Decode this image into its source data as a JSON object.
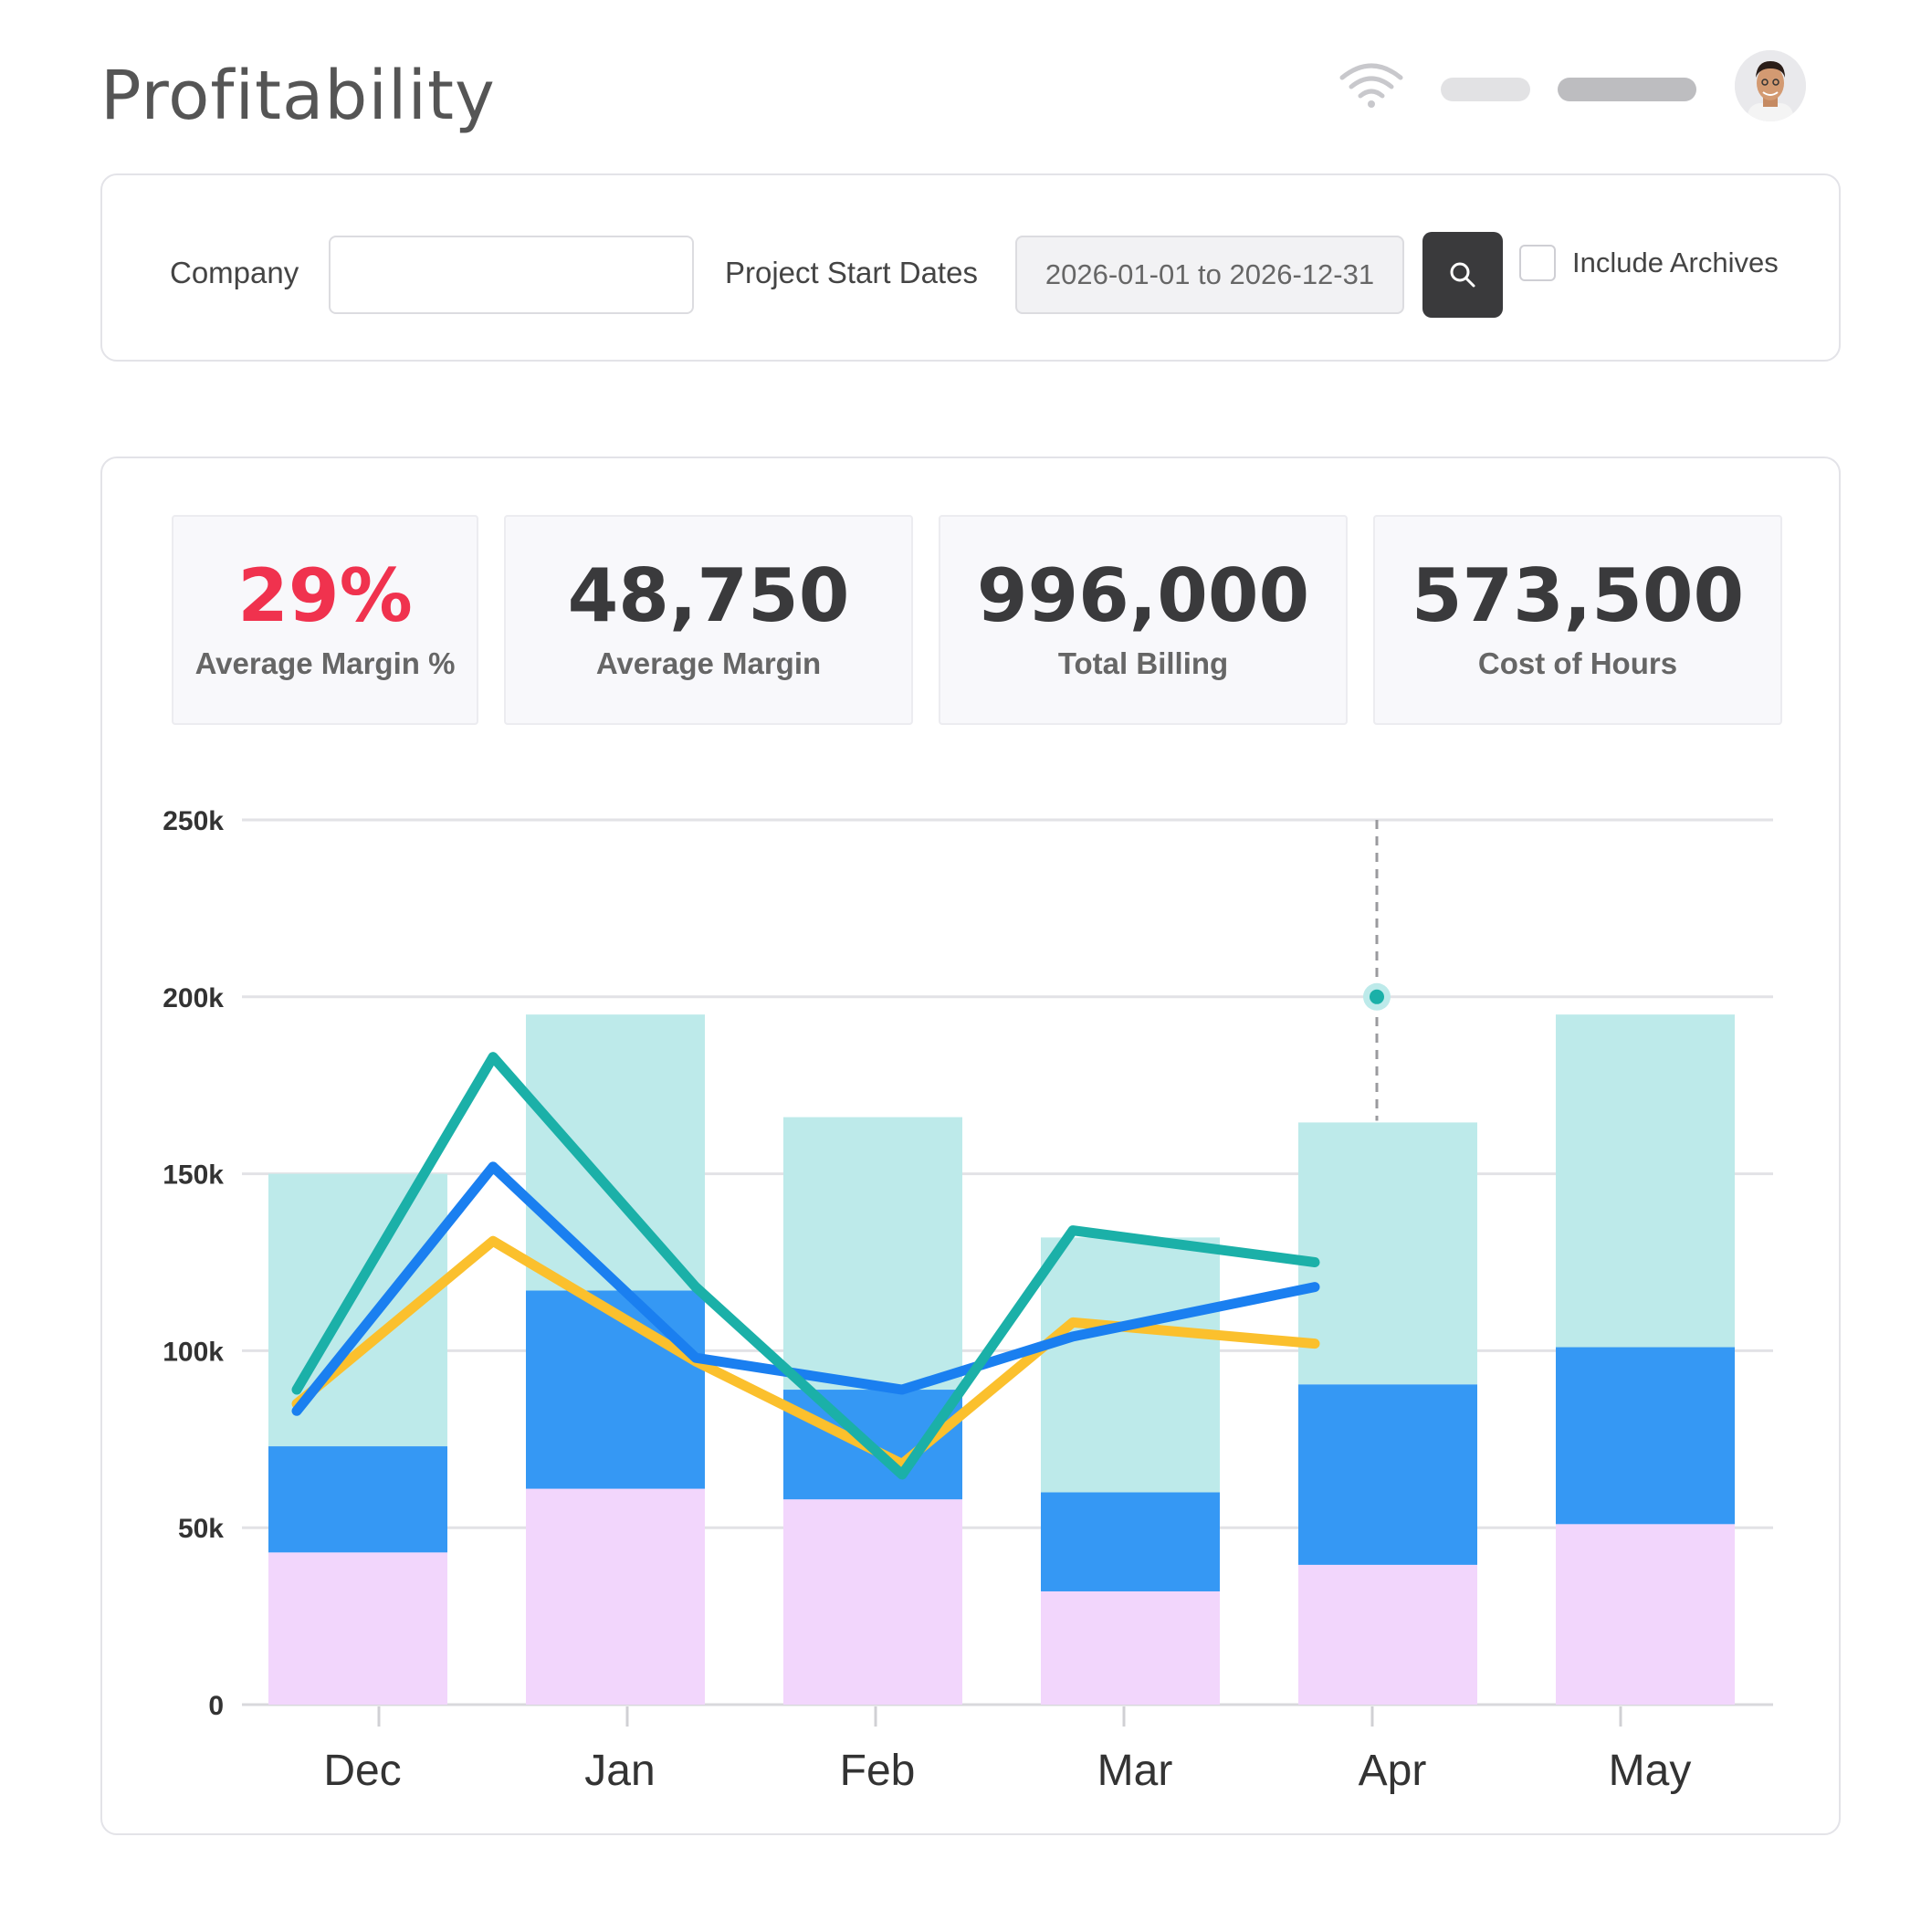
{
  "header": {
    "title": "Profitability"
  },
  "filters": {
    "company_label": "Company",
    "company_value": "",
    "dates_label": "Project Start Dates",
    "dates_value": "2026-01-01 to 2026-12-31",
    "include_archives_label": "Include Archives",
    "include_archives_checked": false
  },
  "kpis": [
    {
      "value": "29%",
      "label": "Average Margin %"
    },
    {
      "value": "48,750",
      "label": "Average Margin"
    },
    {
      "value": "996,000",
      "label": "Total Billing"
    },
    {
      "value": "573,500",
      "label": "Cost of Hours"
    }
  ],
  "colors": {
    "kpi_highlight": "#f0324e",
    "bar_top": "#bdeaea",
    "bar_middle": "#3598f4",
    "bar_bottom": "#f2d6fc",
    "line_teal": "#1bb0a8",
    "line_blue": "#1a7ff0",
    "line_yellow": "#fbc02d"
  },
  "chart_data": {
    "type": "bar",
    "stacked": true,
    "categories": [
      "Dec",
      "Jan",
      "Feb",
      "Mar",
      "Apr",
      "May"
    ],
    "ylim": [
      0,
      250000
    ],
    "yticks": [
      {
        "value": 0,
        "label": "0"
      },
      {
        "value": 50000,
        "label": "50k"
      },
      {
        "value": 100000,
        "label": "100k"
      },
      {
        "value": 150000,
        "label": "150k"
      },
      {
        "value": 200000,
        "label": "200k"
      },
      {
        "value": 250000,
        "label": "250k"
      }
    ],
    "grid": true,
    "series": [
      {
        "type": "bar",
        "color": "#f2d6fc",
        "values": [
          43000,
          61000,
          58000,
          32000,
          39500,
          51000
        ]
      },
      {
        "type": "bar",
        "color": "#3598f4",
        "values": [
          30000,
          56000,
          31000,
          28000,
          51000,
          50000
        ]
      },
      {
        "type": "bar",
        "color": "#bdeaea",
        "values": [
          77000,
          78000,
          77000,
          72000,
          74000,
          94000
        ]
      },
      {
        "type": "line",
        "color": "#1bb0a8",
        "values": [
          89000,
          183000,
          118000,
          65000,
          134000,
          125000
        ]
      },
      {
        "type": "line",
        "color": "#1a7ff0",
        "values": [
          83000,
          152000,
          98000,
          89000,
          104000,
          118000
        ]
      },
      {
        "type": "line",
        "color": "#fbc02d",
        "values": [
          85000,
          131000,
          97000,
          68000,
          108000,
          102000
        ]
      }
    ],
    "hover_marker": {
      "category": "Apr",
      "value": 200000
    }
  }
}
